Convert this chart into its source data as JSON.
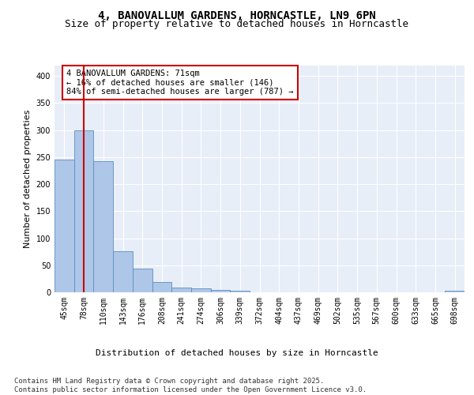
{
  "title": "4, BANOVALLUM GARDENS, HORNCASTLE, LN9 6PN",
  "subtitle": "Size of property relative to detached houses in Horncastle",
  "xlabel": "Distribution of detached houses by size in Horncastle",
  "ylabel": "Number of detached properties",
  "categories": [
    "45sqm",
    "78sqm",
    "110sqm",
    "143sqm",
    "176sqm",
    "208sqm",
    "241sqm",
    "274sqm",
    "306sqm",
    "339sqm",
    "372sqm",
    "404sqm",
    "437sqm",
    "469sqm",
    "502sqm",
    "535sqm",
    "567sqm",
    "600sqm",
    "633sqm",
    "665sqm",
    "698sqm"
  ],
  "values": [
    245,
    300,
    243,
    76,
    44,
    19,
    9,
    7,
    5,
    3,
    0,
    0,
    0,
    0,
    0,
    0,
    0,
    0,
    0,
    0,
    3
  ],
  "bar_color": "#aec6e8",
  "bar_edge_color": "#5a8fc0",
  "bg_color": "#e8eef8",
  "grid_color": "#ffffff",
  "annotation_text": "4 BANOVALLUM GARDENS: 71sqm\n← 16% of detached houses are smaller (146)\n84% of semi-detached houses are larger (787) →",
  "annotation_box_color": "#ffffff",
  "annotation_box_edge_color": "#cc0000",
  "vline_x": 1,
  "vline_color": "#cc0000",
  "ylim": [
    0,
    420
  ],
  "yticks": [
    0,
    50,
    100,
    150,
    200,
    250,
    300,
    350,
    400
  ],
  "footer": "Contains HM Land Registry data © Crown copyright and database right 2025.\nContains public sector information licensed under the Open Government Licence v3.0.",
  "title_fontsize": 10,
  "subtitle_fontsize": 9,
  "axis_label_fontsize": 8,
  "tick_fontsize": 7,
  "annotation_fontsize": 7.5,
  "footer_fontsize": 6.5
}
